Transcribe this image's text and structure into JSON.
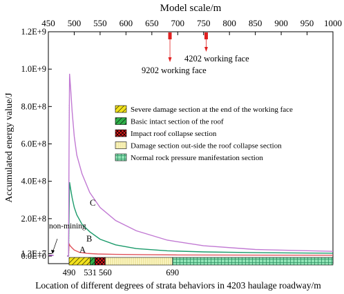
{
  "chart_data": {
    "type": "line",
    "title": "",
    "top_axis": {
      "label": "Model scale/m",
      "ticks": [
        450,
        500,
        550,
        600,
        650,
        700,
        750,
        800,
        850,
        900,
        950,
        1000
      ],
      "range": [
        450,
        1000
      ]
    },
    "xlabel": "Location of different degrees of strata behaviors in 4203 haulage roadway/m",
    "x_ticks": [
      "490",
      "531",
      "560",
      "690"
    ],
    "x_tick_values": [
      490,
      531,
      560,
      690
    ],
    "ylabel": "Accumulated energy value/J",
    "y_ticks": [
      {
        "label": "0.0E+0",
        "value": 0
      },
      {
        "label": "1.3E+7",
        "value": 13000000.0
      },
      {
        "label": "2.0E+8",
        "value": 200000000.0
      },
      {
        "label": "4.0E+8",
        "value": 400000000.0
      },
      {
        "label": "6.0E+8",
        "value": 600000000.0
      },
      {
        "label": "8.0E+8",
        "value": 800000000.0
      },
      {
        "label": "1.0E+9",
        "value": 1000000000.0
      },
      {
        "label": "1.2E+9",
        "value": 1200000000.0
      }
    ],
    "ylim": [
      -20000000.0,
      1200000000.0
    ],
    "xlim": [
      450,
      1000
    ],
    "series": [
      {
        "name": "A",
        "color": "#e0525a",
        "x": [
          486,
          489,
          490,
          492,
          496,
          500,
          510,
          525,
          545,
          580,
          640,
          700,
          800,
          1000
        ],
        "values": [
          0,
          0,
          65000000.0,
          55000000.0,
          43000000.0,
          32000000.0,
          20000000.0,
          14000000.0,
          11000000.0,
          9000000.0,
          7000000.0,
          6000000.0,
          5000000.0,
          4000000.0
        ]
      },
      {
        "name": "B",
        "color": "#1a9a6a",
        "x": [
          486,
          489,
          490,
          491,
          493,
          496,
          500,
          505,
          515,
          530,
          550,
          580,
          620,
          680,
          750,
          850,
          1000
        ],
        "values": [
          0,
          0,
          220000000.0,
          395000000.0,
          360000000.0,
          310000000.0,
          260000000.0,
          220000000.0,
          170000000.0,
          130000000.0,
          90000000.0,
          60000000.0,
          40000000.0,
          28000000.0,
          22000000.0,
          18000000.0,
          15000000.0
        ]
      },
      {
        "name": "C",
        "color": "#c179d3",
        "x": [
          486,
          489,
          490,
          491,
          493,
          496,
          500,
          505,
          515,
          530,
          550,
          580,
          620,
          680,
          750,
          850,
          1000
        ],
        "values": [
          0,
          0,
          600000000.0,
          975000000.0,
          900000000.0,
          770000000.0,
          640000000.0,
          540000000.0,
          440000000.0,
          340000000.0,
          260000000.0,
          190000000.0,
          135000000.0,
          85000000.0,
          55000000.0,
          35000000.0,
          25000000.0
        ]
      }
    ],
    "non_mining": {
      "label": "non-mining",
      "color": "#9b3bb8",
      "x": [
        450,
        460
      ]
    },
    "annotations": [
      {
        "text": "4202 working face",
        "x": 755,
        "color": "#e02020"
      },
      {
        "text": "9202 working face",
        "x": 685,
        "color": "#e02020"
      }
    ],
    "sections": [
      {
        "label": "Severe damage section at the end of the working face",
        "range": [
          490,
          531
        ],
        "fill": "#f3e21c",
        "pattern": "diag-right"
      },
      {
        "label": "Basic intact section of the roof",
        "range": [
          531,
          540
        ],
        "fill": "#2fb04a",
        "pattern": "diag-right"
      },
      {
        "label": "Impact roof collapse section",
        "range": [
          540,
          560
        ],
        "fill": "#e31c1c",
        "pattern": "cross"
      },
      {
        "label": "Damage section out-side the roof collapse section",
        "range": [
          560,
          690
        ],
        "fill": "#fff8c6",
        "pattern": "vertical"
      },
      {
        "label": "Normal rock pressure manifestation section",
        "range": [
          690,
          1000
        ],
        "fill": "#8fe2b4",
        "pattern": "grid"
      }
    ],
    "legend_placement": "right",
    "grid": false
  }
}
